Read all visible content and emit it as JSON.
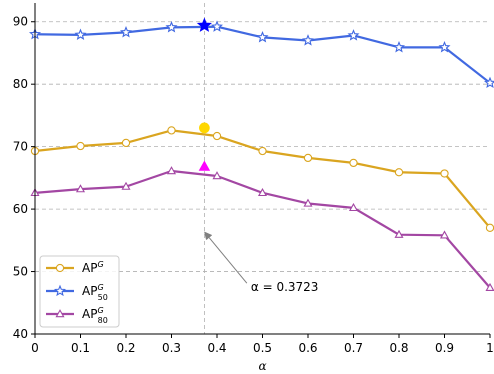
{
  "chart_data": {
    "type": "line",
    "title": "",
    "xlabel": "α",
    "ylabel": "",
    "xlim": [
      0,
      1
    ],
    "ylim": [
      40,
      93
    ],
    "x": [
      0,
      0.1,
      0.2,
      0.3,
      0.4,
      0.5,
      0.6,
      0.7,
      0.8,
      0.9,
      1.0
    ],
    "xticks": [
      0,
      0.1,
      0.2,
      0.3,
      0.4,
      0.5,
      0.6,
      0.7,
      0.8,
      0.9,
      1
    ],
    "xtick_labels": [
      "0",
      "0.1",
      "0.2",
      "0.3",
      "0.4",
      "0.5",
      "0.6",
      "0.7",
      "0.8",
      "0.9",
      "1"
    ],
    "yticks": [
      40,
      50,
      60,
      70,
      80,
      90
    ],
    "ytick_labels": [
      "40",
      "50",
      "60",
      "70",
      "80",
      "90"
    ],
    "grid": "horizontal dashed",
    "legend_position": "lower-left",
    "series": [
      {
        "name": "AP",
        "name_sup": "G",
        "name_sub": "",
        "color": "#DAA520",
        "marker": "circle",
        "values": [
          69.3,
          70.1,
          70.6,
          72.6,
          71.7,
          69.3,
          68.2,
          67.4,
          65.9,
          65.7,
          57.0
        ],
        "best_point": {
          "x": 0.3723,
          "y": 73.0,
          "marker": "circle"
        }
      },
      {
        "name": "AP",
        "name_sup": "G",
        "name_sub": "50",
        "color": "#4169E1",
        "marker": "star",
        "values": [
          88.0,
          87.9,
          88.3,
          89.1,
          89.2,
          87.5,
          87.0,
          87.8,
          85.9,
          85.9,
          80.2
        ],
        "best_point": {
          "x": 0.3723,
          "y": 89.4,
          "marker": "star"
        }
      },
      {
        "name": "AP",
        "name_sup": "G",
        "name_sub": "80",
        "color": "#A347A3",
        "marker": "triangle",
        "values": [
          62.6,
          63.2,
          63.6,
          66.1,
          65.3,
          62.6,
          60.9,
          60.2,
          55.9,
          55.8,
          47.4
        ],
        "best_point": {
          "x": 0.3723,
          "y": 66.8,
          "marker": "triangle"
        }
      }
    ],
    "best_point_colors": [
      "#FFD700",
      "#0000FF",
      "#FF00FF"
    ],
    "vline": {
      "x": 0.3723
    },
    "annotation": {
      "text": "α = 0.3723",
      "xy": [
        0.3723,
        55.2
      ],
      "text_xy": [
        0.47,
        47.5
      ]
    }
  }
}
